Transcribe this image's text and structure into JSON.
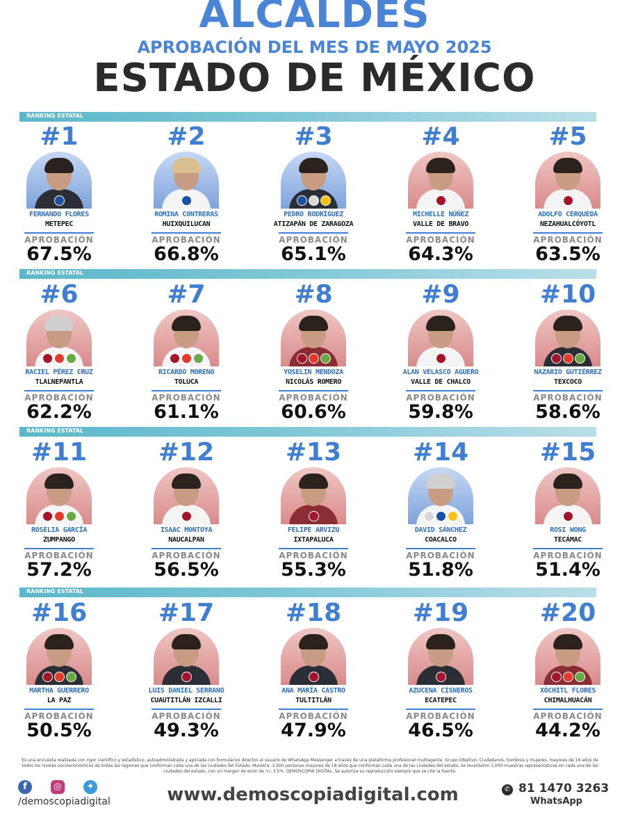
{
  "header": {
    "title_top": "ALCALDES",
    "subtitle": "APROBACIÓN DEL MES DE MAYO 2025",
    "title_main": "ESTADO DE MÉXICO"
  },
  "band_label": "RANKING ESTATAL",
  "approval_label": "APROBACIÓN",
  "chart_data": {
    "type": "table",
    "title": "ALCALDES",
    "subtitle": "APROBACIÓN DEL MES DE MAYO 2025",
    "columns": [
      "rank",
      "mayor",
      "municipality",
      "approval_pct"
    ],
    "rows": [
      {
        "rank": "#1",
        "name": "FERNANDO FLORES",
        "muni": "METEPEC",
        "value": "67.5%",
        "pct": 67.5,
        "bg": "blue",
        "hair": "dark",
        "body": "dark",
        "parties": [
          "pan"
        ]
      },
      {
        "rank": "#2",
        "name": "ROMINA CONTRERAS",
        "muni": "HUIXQUILUCAN",
        "value": "66.8%",
        "pct": 66.8,
        "bg": "blue",
        "hair": "light",
        "body": "light",
        "parties": [
          "pan"
        ]
      },
      {
        "rank": "#3",
        "name": "PEDRO RODRÍGUEZ",
        "muni": "ATIZAPÁN DE ZARAGOZA",
        "value": "65.1%",
        "pct": 65.1,
        "bg": "blue",
        "hair": "dark",
        "body": "dark",
        "parties": [
          "pan",
          "pri",
          "prd"
        ]
      },
      {
        "rank": "#4",
        "name": "MICHELLE NÚÑEZ",
        "muni": "VALLE DE BRAVO",
        "value": "64.3%",
        "pct": 64.3,
        "bg": "red",
        "hair": "dark",
        "body": "light",
        "parties": [
          "morena"
        ]
      },
      {
        "rank": "#5",
        "name": "ADOLFO CERQUEDA",
        "muni": "NEZAHUALCÓYOTL",
        "value": "63.5%",
        "pct": 63.5,
        "bg": "red",
        "hair": "dark",
        "body": "light",
        "parties": [
          "morena"
        ]
      },
      {
        "rank": "#6",
        "name": "RACIEL PÉREZ CRUZ",
        "muni": "TLALNEPANTLA",
        "value": "62.2%",
        "pct": 62.2,
        "bg": "red",
        "hair": "grey",
        "body": "light",
        "parties": [
          "morena",
          "pt",
          "verde"
        ]
      },
      {
        "rank": "#7",
        "name": "RICARDO MORENO",
        "muni": "TOLUCA",
        "value": "61.1%",
        "pct": 61.1,
        "bg": "red",
        "hair": "dark",
        "body": "light",
        "parties": [
          "morena",
          "pt",
          "verde"
        ]
      },
      {
        "rank": "#8",
        "name": "YOSELIN MENDOZA",
        "muni": "NICOLÁS ROMERO",
        "value": "60.6%",
        "pct": 60.6,
        "bg": "red",
        "hair": "dark",
        "body": "red",
        "parties": [
          "morena",
          "pt",
          "verde"
        ]
      },
      {
        "rank": "#9",
        "name": "ALAN VELASCO AGUERO",
        "muni": "VALLE DE CHALCO",
        "value": "59.8%",
        "pct": 59.8,
        "bg": "red",
        "hair": "dark",
        "body": "light",
        "parties": [
          "morena"
        ]
      },
      {
        "rank": "#10",
        "name": "NAZARIO GUTIÉRREZ",
        "muni": "TEXCOCO",
        "value": "58.6%",
        "pct": 58.6,
        "bg": "red",
        "hair": "dark",
        "body": "dark",
        "parties": [
          "morena",
          "pt",
          "verde"
        ]
      },
      {
        "rank": "#11",
        "name": "ROSELIA GARCÍA",
        "muni": "ZUMPANGO",
        "value": "57.2%",
        "pct": 57.2,
        "bg": "red",
        "hair": "dark",
        "body": "light",
        "parties": [
          "morena",
          "pt",
          "verde"
        ]
      },
      {
        "rank": "#12",
        "name": "ISAAC MONTOYA",
        "muni": "NAUCALPAN",
        "value": "56.5%",
        "pct": 56.5,
        "bg": "red",
        "hair": "dark",
        "body": "light",
        "parties": [
          "morena"
        ]
      },
      {
        "rank": "#13",
        "name": "FELIPE ARVIZU",
        "muni": "IXTAPALUCA",
        "value": "55.3%",
        "pct": 55.3,
        "bg": "red",
        "hair": "dark",
        "body": "red",
        "parties": [
          "morena"
        ]
      },
      {
        "rank": "#14",
        "name": "DAVID SÁNCHEZ",
        "muni": "COACALCO",
        "value": "51.8%",
        "pct": 51.8,
        "bg": "blue",
        "hair": "grey",
        "body": "light",
        "parties": [
          "pri",
          "pan",
          "prd"
        ]
      },
      {
        "rank": "#15",
        "name": "ROSI WONG",
        "muni": "TECÁMAC",
        "value": "51.4%",
        "pct": 51.4,
        "bg": "red",
        "hair": "dark",
        "body": "light",
        "parties": [
          "morena"
        ]
      },
      {
        "rank": "#16",
        "name": "MARTHA GUERRERO",
        "muni": "LA PAZ",
        "value": "50.5%",
        "pct": 50.5,
        "bg": "red",
        "hair": "dark",
        "body": "dark",
        "parties": [
          "morena",
          "pt",
          "verde"
        ]
      },
      {
        "rank": "#17",
        "name": "LUIS DANIEL SERRANO",
        "muni": "CUAUTITLÁN IZCALLI",
        "value": "49.3%",
        "pct": 49.3,
        "bg": "red",
        "hair": "dark",
        "body": "dark",
        "parties": [
          "morena"
        ]
      },
      {
        "rank": "#18",
        "name": "ANA MARÍA CASTRO",
        "muni": "TULTITLÁN",
        "value": "47.9%",
        "pct": 47.9,
        "bg": "red",
        "hair": "dark",
        "body": "dark",
        "parties": [
          "morena"
        ]
      },
      {
        "rank": "#19",
        "name": "AZUCENA CISNEROS",
        "muni": "ECATEPEC",
        "value": "46.5%",
        "pct": 46.5,
        "bg": "red",
        "hair": "dark",
        "body": "dark",
        "parties": [
          "morena"
        ]
      },
      {
        "rank": "#20",
        "name": "XÓCHITL FLORES",
        "muni": "CHIMALHUACÁN",
        "value": "44.2%",
        "pct": 44.2,
        "bg": "red",
        "hair": "dark",
        "body": "red",
        "parties": [
          "morena",
          "pt",
          "verde"
        ]
      }
    ]
  },
  "footer": {
    "note": "Es una encuesta realizada con rigor científico y estadístico, autoadministrada y aplicada con formularios directos al usuario de WhatsApp Messenger a través de una plataforma profesional multiagente. Grupo Objetivo: Ciudadanos, hombres y mujeres, mayores de 18 años de todos los niveles socioeconómicos de todas las regiones que conforman cada una de las ciudades del Estado. Muestra: 1,000 personas mayores de 18 años que conforman cada una de las ciudades del estado, se levantaron 1,000 muestras representativas en cada una de las ciudades del estado, con un margen de error de +/- 3.5%. DEMOSCOPIA DIGITAL. Se autoriza su reproducción siempre que se cite la fuente.",
    "handle": "/demoscopiadigital",
    "site": "www.demoscopiadigital.com",
    "phone": "81 1470 3263",
    "whatsapp_label": "WhatsApp",
    "social_icons": [
      "facebook-icon",
      "instagram-icon",
      "twitter-icon"
    ]
  },
  "colors": {
    "title_blue": "#4a84d6",
    "rank_blue": "#3f7ed0",
    "band": "#5ab7c9",
    "morena": "#a3152d",
    "pan": "#1f4fa3"
  }
}
